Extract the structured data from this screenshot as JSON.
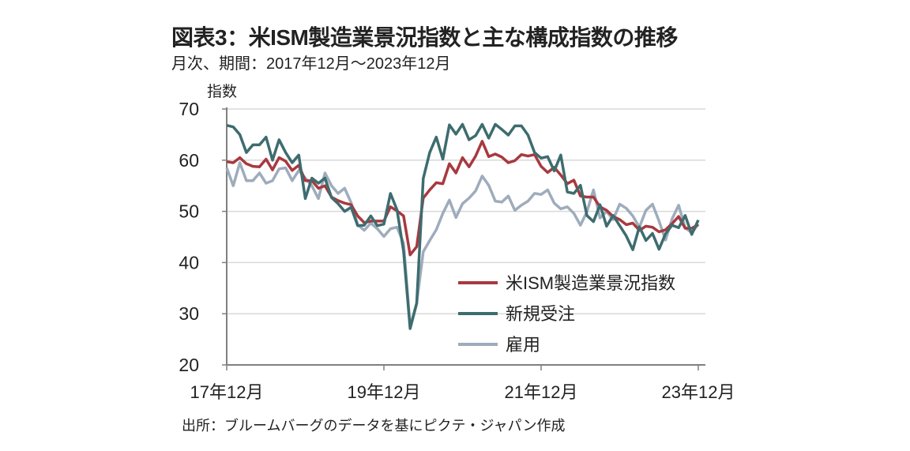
{
  "title": "図表3：米ISM製造業景況指数と主な構成指数の推移",
  "subtitle": "月次、期間：2017年12月～2023年12月",
  "source": "出所：ブルームバーグのデータを基にピクテ・ジャパン作成",
  "chart_data": {
    "type": "line",
    "title": "図表3：米ISM製造業景況指数と主な構成指数の推移",
    "xlabel": "",
    "ylabel": "指数",
    "ylim": [
      20,
      70
    ],
    "yticks": [
      20,
      30,
      40,
      50,
      60,
      70
    ],
    "x_start": "2017-12",
    "x_end": "2023-12",
    "xtick_labels": [
      "17年12月",
      "19年12月",
      "21年12月",
      "23年12月"
    ],
    "xtick_months": [
      0,
      24,
      48,
      72
    ],
    "grid": true,
    "legend_position": "bottom-right",
    "series": [
      {
        "name": "米ISM製造業景況指数",
        "color": "#a8393f",
        "values": [
          59.7,
          59.5,
          60.5,
          59.3,
          58.8,
          58.7,
          60.2,
          58.1,
          60.5,
          59.8,
          58.0,
          59.0,
          56.0,
          56.0,
          54.5,
          55.0,
          52.8,
          52.1,
          51.6,
          51.3,
          49.1,
          47.8,
          48.1,
          48.1,
          48.1,
          50.9,
          50.1,
          49.1,
          41.5,
          43.1,
          52.6,
          54.2,
          55.6,
          55.4,
          59.3,
          57.5,
          60.5,
          58.7,
          60.8,
          63.7,
          60.7,
          61.2,
          60.6,
          59.5,
          59.9,
          61.1,
          60.8,
          61.1,
          58.8,
          57.6,
          58.6,
          57.1,
          55.4,
          56.1,
          53.0,
          52.8,
          52.8,
          50.9,
          50.2,
          49.0,
          48.4,
          47.4,
          47.7,
          46.3,
          47.1,
          46.9,
          46.0,
          46.4,
          47.6,
          49.0,
          46.7,
          46.7,
          47.4
        ]
      },
      {
        "name": "新規受注",
        "color": "#3e6c6f",
        "values": [
          66.8,
          66.5,
          65.0,
          61.5,
          63.0,
          63.0,
          64.5,
          60.0,
          64.0,
          61.5,
          59.5,
          61.0,
          52.5,
          56.5,
          55.5,
          56.5,
          52.7,
          51.5,
          50.0,
          50.8,
          47.2,
          47.3,
          49.1,
          47.2,
          47.5,
          53.5,
          50.3,
          42.2,
          27.1,
          32.0,
          56.4,
          61.5,
          64.5,
          60.2,
          66.9,
          65.1,
          67.0,
          64.0,
          64.8,
          67.0,
          64.3,
          67.0,
          66.0,
          64.9,
          66.7,
          66.7,
          64.9,
          61.5,
          60.4,
          60.7,
          57.9,
          61.0,
          53.8,
          53.5,
          55.1,
          49.2,
          48.0,
          51.3,
          47.1,
          49.2,
          47.2,
          45.2,
          42.5,
          47.0,
          44.3,
          45.7,
          42.6,
          45.6,
          47.3,
          46.8,
          49.2,
          45.5,
          48.3
        ]
      },
      {
        "name": "雇用",
        "color": "#9eacbc",
        "values": [
          58.5,
          55.0,
          59.5,
          56.0,
          56.0,
          57.5,
          55.5,
          56.0,
          58.3,
          58.5,
          56.0,
          58.0,
          56.5,
          55.0,
          52.5,
          57.5,
          55.0,
          53.5,
          54.5,
          51.7,
          47.4,
          46.3,
          47.7,
          46.6,
          45.1,
          46.6,
          46.9,
          43.8,
          27.5,
          32.1,
          42.1,
          44.3,
          46.4,
          49.6,
          52.2,
          48.8,
          51.5,
          52.6,
          54.0,
          56.9,
          55.1,
          52.0,
          51.8,
          53.0,
          50.2,
          51.2,
          52.0,
          53.5,
          53.3,
          54.2,
          51.6,
          50.5,
          50.9,
          49.6,
          47.3,
          49.9,
          54.2,
          48.7,
          50.0,
          48.4,
          51.4,
          50.6,
          49.1,
          46.9,
          50.2,
          51.4,
          48.1,
          44.4,
          48.5,
          51.2,
          46.8,
          45.8,
          47.5
        ]
      }
    ]
  }
}
